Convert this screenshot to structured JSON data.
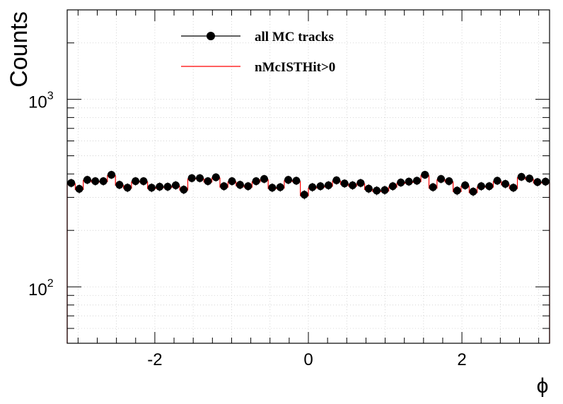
{
  "chart_data": {
    "type": "line",
    "xlabel": "ϕ",
    "ylabel": "Counts",
    "xlim": [
      -3.1416,
      3.1416
    ],
    "ylim": [
      50,
      3000
    ],
    "yscale": "log",
    "grid": true,
    "legend_placement": "top-center",
    "x_ticks": [
      {
        "value": -2,
        "label": "-2"
      },
      {
        "value": 0,
        "label": "0"
      },
      {
        "value": 2,
        "label": "2"
      }
    ],
    "y_ticks": [
      {
        "value": 100,
        "base": "10",
        "exp": "2"
      },
      {
        "value": 1000,
        "base": "10",
        "exp": "3"
      }
    ],
    "series": [
      {
        "name": "all MC tracks",
        "style": "markers-with-errors",
        "color": "#000000",
        "values": [
          358,
          333,
          372,
          366,
          366,
          396,
          350,
          338,
          366,
          366,
          338,
          342,
          342,
          348,
          330,
          380,
          380,
          366,
          384,
          344,
          366,
          350,
          344,
          366,
          376,
          338,
          340,
          372,
          368,
          310,
          340,
          344,
          348,
          370,
          356,
          348,
          358,
          334,
          326,
          328,
          344,
          360,
          364,
          368,
          396,
          340,
          376,
          366,
          326,
          348,
          322,
          344,
          344,
          368,
          354,
          338,
          386,
          378,
          362,
          364
        ]
      },
      {
        "name": "nMcISTHit>0",
        "style": "step",
        "color": "#ff0000",
        "values": [
          354,
          330,
          370,
          362,
          364,
          392,
          348,
          336,
          362,
          362,
          334,
          338,
          338,
          344,
          328,
          376,
          376,
          362,
          380,
          340,
          362,
          346,
          340,
          362,
          372,
          334,
          336,
          368,
          364,
          306,
          336,
          340,
          344,
          366,
          352,
          344,
          354,
          330,
          322,
          324,
          340,
          356,
          360,
          364,
          392,
          336,
          372,
          362,
          322,
          344,
          318,
          340,
          340,
          364,
          350,
          334,
          382,
          374,
          358,
          360
        ]
      }
    ]
  }
}
